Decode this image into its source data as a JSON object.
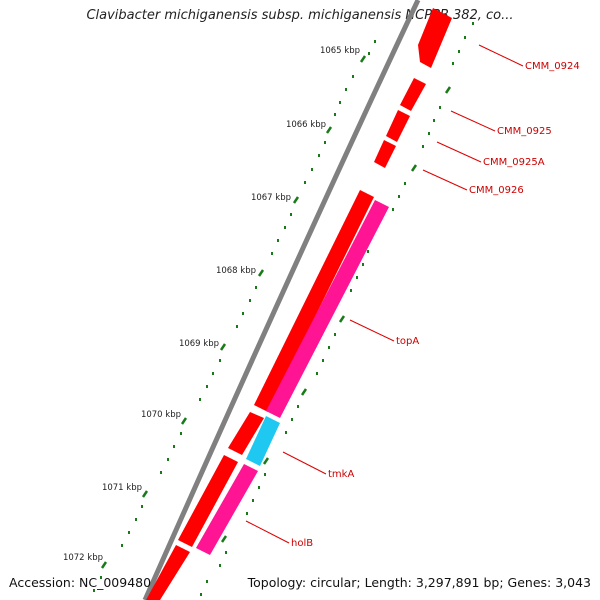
{
  "title": "Clavibacter michiganensis subsp. michiganensis NCPPB 382, co...",
  "footer": {
    "accession": "Accession: NC_009480",
    "summary": "Topology: circular; Length: 3,297,891 bp; Genes: 3,043"
  },
  "colors": {
    "backbone": "#808080",
    "forward_cds": "#ff0000",
    "reverse_cds": "#ff1493",
    "highlight_cds": "#1ec8f0",
    "ticks": "#1a7a1a",
    "gene_label": "#cc0000"
  },
  "scale_ticks": [
    {
      "label": "1065 kbp"
    },
    {
      "label": "1066 kbp"
    },
    {
      "label": "1067 kbp"
    },
    {
      "label": "1068 kbp"
    },
    {
      "label": "1069 kbp"
    },
    {
      "label": "1070 kbp"
    },
    {
      "label": "1071 kbp"
    },
    {
      "label": "1072 kbp"
    }
  ],
  "gene_labels": [
    {
      "name": "CMM_0924"
    },
    {
      "name": "CMM_0925"
    },
    {
      "name": "CMM_0925A"
    },
    {
      "name": "CMM_0926"
    },
    {
      "name": "topA"
    },
    {
      "name": "tmkA"
    },
    {
      "name": "holB"
    }
  ]
}
